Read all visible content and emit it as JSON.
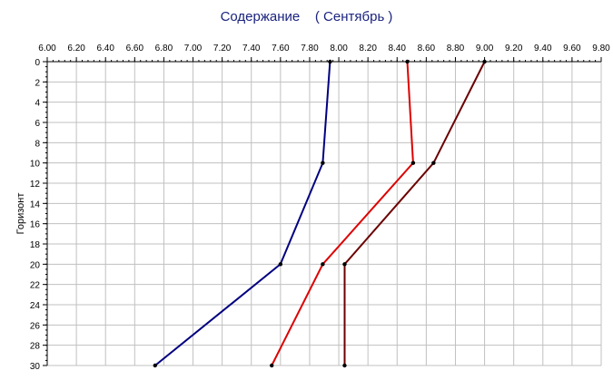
{
  "chart_data": {
    "type": "line",
    "title": "Содержание    ( Сентябрь )",
    "xlabel": "",
    "ylabel": "Горизонт",
    "x_axis_position": "top",
    "y_axis_inverted": true,
    "xlim": [
      6.0,
      9.8
    ],
    "ylim": [
      0,
      30
    ],
    "grid": true,
    "x_ticks": [
      "6.00",
      "6.20",
      "6.40",
      "6.60",
      "6.80",
      "7.00",
      "7.20",
      "7.40",
      "7.60",
      "7.80",
      "8.00",
      "8.20",
      "8.40",
      "8.60",
      "8.80",
      "9.00",
      "9.20",
      "9.40",
      "9.60",
      "9.80"
    ],
    "y_ticks": [
      "0",
      "2",
      "4",
      "6",
      "8",
      "10",
      "12",
      "14",
      "16",
      "18",
      "20",
      "22",
      "24",
      "26",
      "28",
      "30"
    ],
    "colors": {
      "grid": "#c0c0c0",
      "axis": "#000000",
      "title": "#1a237e"
    },
    "series": [
      {
        "color": "#000080",
        "points": [
          [
            7.94,
            0
          ],
          [
            7.89,
            10
          ],
          [
            7.6,
            20
          ],
          [
            6.74,
            30
          ]
        ]
      },
      {
        "color": "#dd0000",
        "points": [
          [
            8.47,
            0
          ],
          [
            8.51,
            10
          ],
          [
            7.89,
            20
          ],
          [
            7.54,
            30
          ]
        ]
      },
      {
        "color": "#6b0000",
        "points": [
          [
            9.0,
            0
          ],
          [
            8.65,
            10
          ],
          [
            8.04,
            20
          ],
          [
            8.04,
            30
          ]
        ]
      }
    ]
  }
}
